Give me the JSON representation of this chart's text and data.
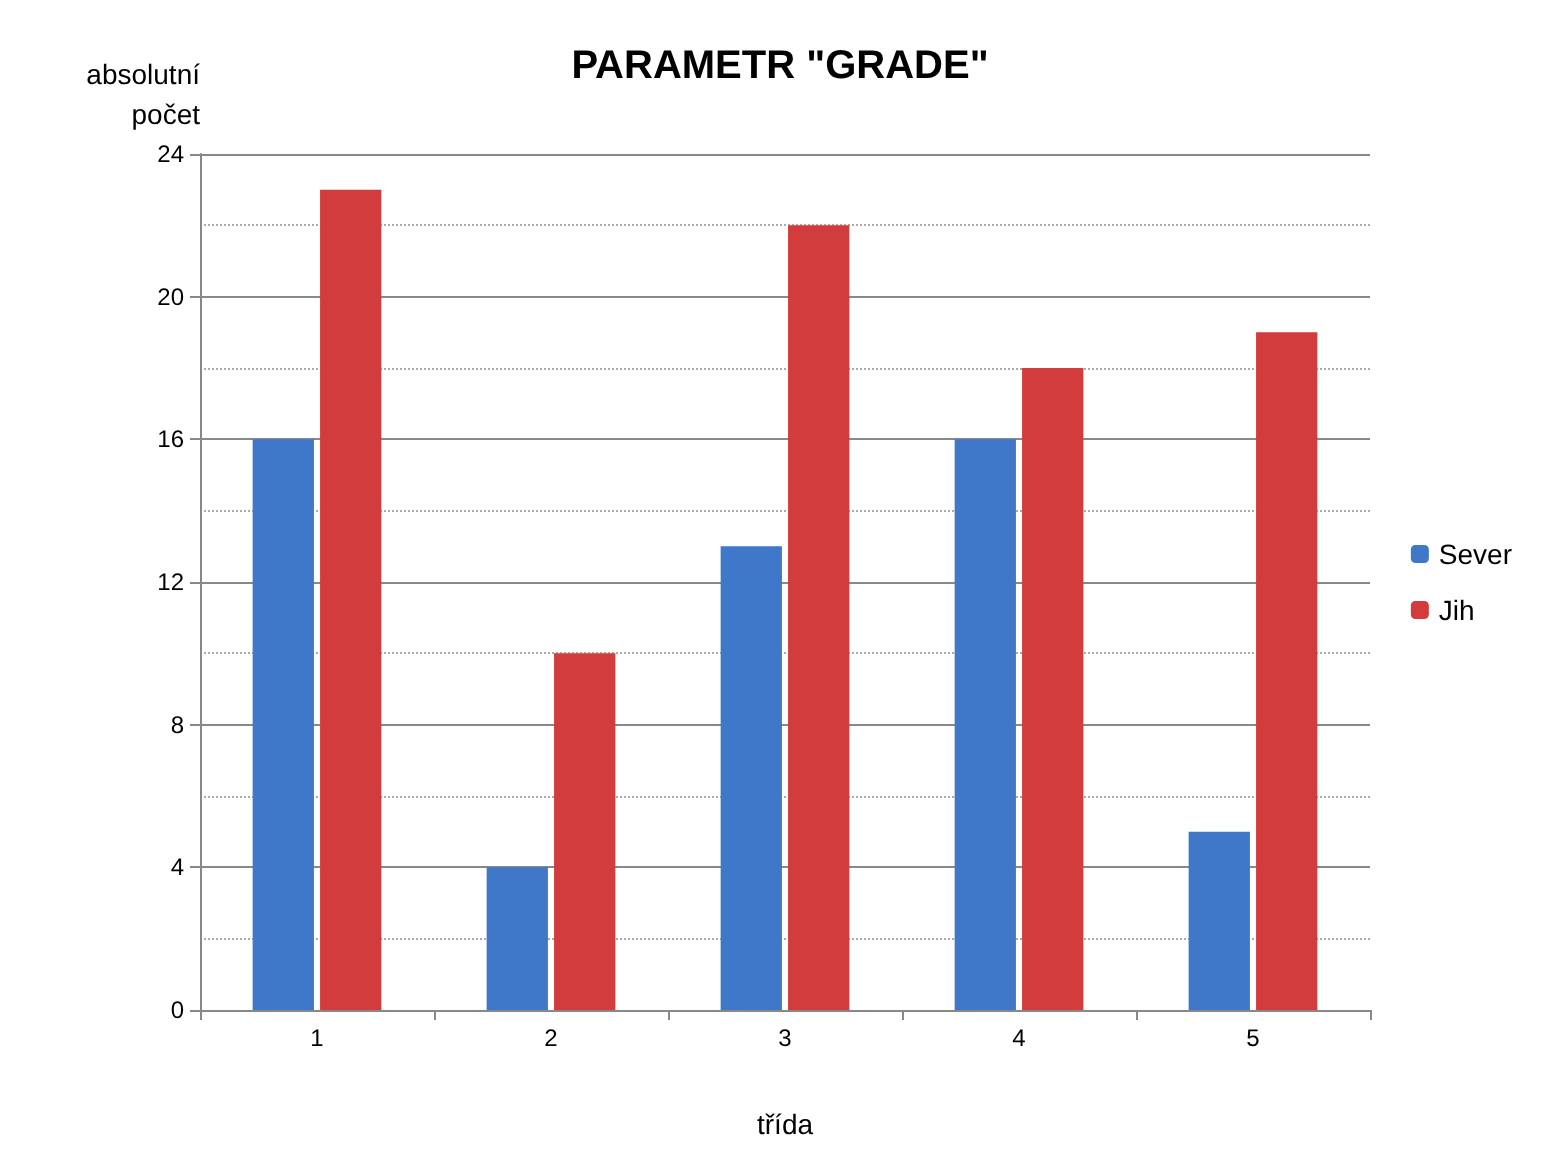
{
  "chart_data": {
    "type": "bar",
    "title": "PARAMETR \"GRADE\"",
    "xlabel": "třída",
    "ylabel": "absolutní počet",
    "categories": [
      "1",
      "2",
      "3",
      "4",
      "5"
    ],
    "series": [
      {
        "name": "Sever",
        "color": "#3f78c8",
        "values": [
          16,
          4,
          13,
          16,
          5
        ]
      },
      {
        "name": "Jih",
        "color": "#d23c3c",
        "values": [
          23,
          10,
          22,
          18,
          19
        ]
      }
    ],
    "ylim": [
      0,
      24
    ],
    "yticks": [
      0,
      4,
      8,
      12,
      16,
      20,
      24
    ],
    "grid": "y",
    "legend": "right"
  }
}
